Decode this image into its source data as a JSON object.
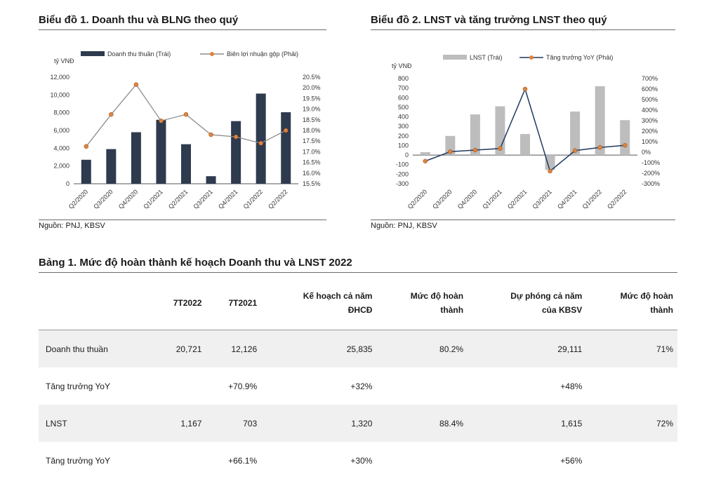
{
  "chart1": {
    "title": "Biểu đồ 1. Doanh thu và BLNG theo quý",
    "source": "Nguồn: PNJ, KBSV",
    "unit": "tỷ VNĐ",
    "legend": [
      "Doanh thu thuần (Trái)",
      "Biên lợi nhuận gộp (Phải)"
    ],
    "left_ticks": [
      "0",
      "2,000",
      "4,000",
      "6,000",
      "8,000",
      "10,000",
      "12,000"
    ],
    "right_ticks": [
      "15.5%",
      "16.0%",
      "16.5%",
      "17.0%",
      "17.5%",
      "18.0%",
      "18.5%",
      "19.0%",
      "19.5%",
      "20.0%",
      "20.5%"
    ]
  },
  "chart2": {
    "title": "Biểu đồ 2. LNST và tăng trưởng LNST theo quý",
    "source": "Nguồn: PNJ, KBSV",
    "unit": "tỷ VNĐ",
    "legend": [
      "LNST (Trái)",
      "Tăng trưởng YoY (Phải)"
    ],
    "left_ticks": [
      "-300",
      "-200",
      "-100",
      "0",
      "100",
      "200",
      "300",
      "400",
      "500",
      "600",
      "700",
      "800"
    ],
    "right_ticks": [
      "-300%",
      "-200%",
      "-100%",
      "0%",
      "100%",
      "200%",
      "300%",
      "400%",
      "500%",
      "600%",
      "700%"
    ]
  },
  "chart_data": [
    {
      "type": "bar",
      "title": "Biểu đồ 1. Doanh thu và BLNG theo quý",
      "ylabel": "tỷ VNĐ",
      "categories": [
        "Q2/2020",
        "Q3/2020",
        "Q4/2020",
        "Q1/2021",
        "Q2/2021",
        "Q3/2021",
        "Q4/2021",
        "Q1/2022",
        "Q2/2022"
      ],
      "series": [
        {
          "name": "Doanh thu thuần (Trái)",
          "type": "bar",
          "axis": "left",
          "color": "#2e3a4e",
          "values": [
            2700,
            3900,
            5800,
            7200,
            4450,
            850,
            7050,
            10150,
            8050
          ]
        },
        {
          "name": "Biên lợi nhuận gộp (Phải)",
          "type": "line",
          "axis": "right",
          "color": "#e0823c",
          "line_color": "#8c8c8c",
          "values": [
            17.25,
            18.75,
            20.15,
            18.45,
            18.75,
            17.8,
            17.7,
            17.4,
            18.0
          ]
        }
      ],
      "ylim": [
        0,
        12000
      ],
      "y2lim": [
        15.5,
        20.5
      ],
      "legend_position": "top"
    },
    {
      "type": "bar",
      "title": "Biểu đồ 2. LNST và tăng trưởng LNST theo quý",
      "ylabel": "tỷ VNĐ",
      "categories": [
        "Q2/2020",
        "Q3/2020",
        "Q4/2020",
        "Q1/2021",
        "Q2/2021",
        "Q3/2021",
        "Q4/2021",
        "Q1/2022",
        "Q2/2022"
      ],
      "series": [
        {
          "name": "LNST (Trái)",
          "type": "bar",
          "axis": "left",
          "color": "#bdbdbd",
          "values": [
            30,
            200,
            425,
            510,
            220,
            -155,
            455,
            720,
            365
          ]
        },
        {
          "name": "Tăng trưởng YoY (Phải)",
          "type": "line",
          "axis": "right",
          "color": "#e0823c",
          "line_color": "#1f3a5f",
          "values": [
            -85,
            5,
            20,
            35,
            600,
            -180,
            15,
            45,
            65
          ]
        }
      ],
      "ylim": [
        -300,
        800
      ],
      "y2lim": [
        -300,
        700
      ],
      "legend_position": "top"
    }
  ],
  "table": {
    "title": "Bảng 1. Mức độ hoàn thành kế hoạch Doanh thu và LNST 2022",
    "headers": [
      "",
      "7T2022",
      "7T2021",
      "Kế hoạch cả năm",
      "Mức độ hoàn",
      "Dự phóng cả năm",
      "Mức độ hoàn"
    ],
    "headers2": [
      "",
      "",
      "",
      "ĐHCĐ",
      "thành",
      "của KBSV",
      "thành"
    ],
    "rows": [
      [
        "Doanh thu thuần",
        "20,721",
        "12,126",
        "25,835",
        "80.2%",
        "29,111",
        "71%"
      ],
      [
        "Tăng trưởng YoY",
        "",
        "+70.9%",
        "+32%",
        "",
        "+48%",
        ""
      ],
      [
        "LNST",
        "1,167",
        "703",
        "1,320",
        "88.4%",
        "1,615",
        "72%"
      ],
      [
        "Tăng trưởng YoY",
        "",
        "+66.1%",
        "+30%",
        "",
        "+56%",
        ""
      ]
    ]
  }
}
